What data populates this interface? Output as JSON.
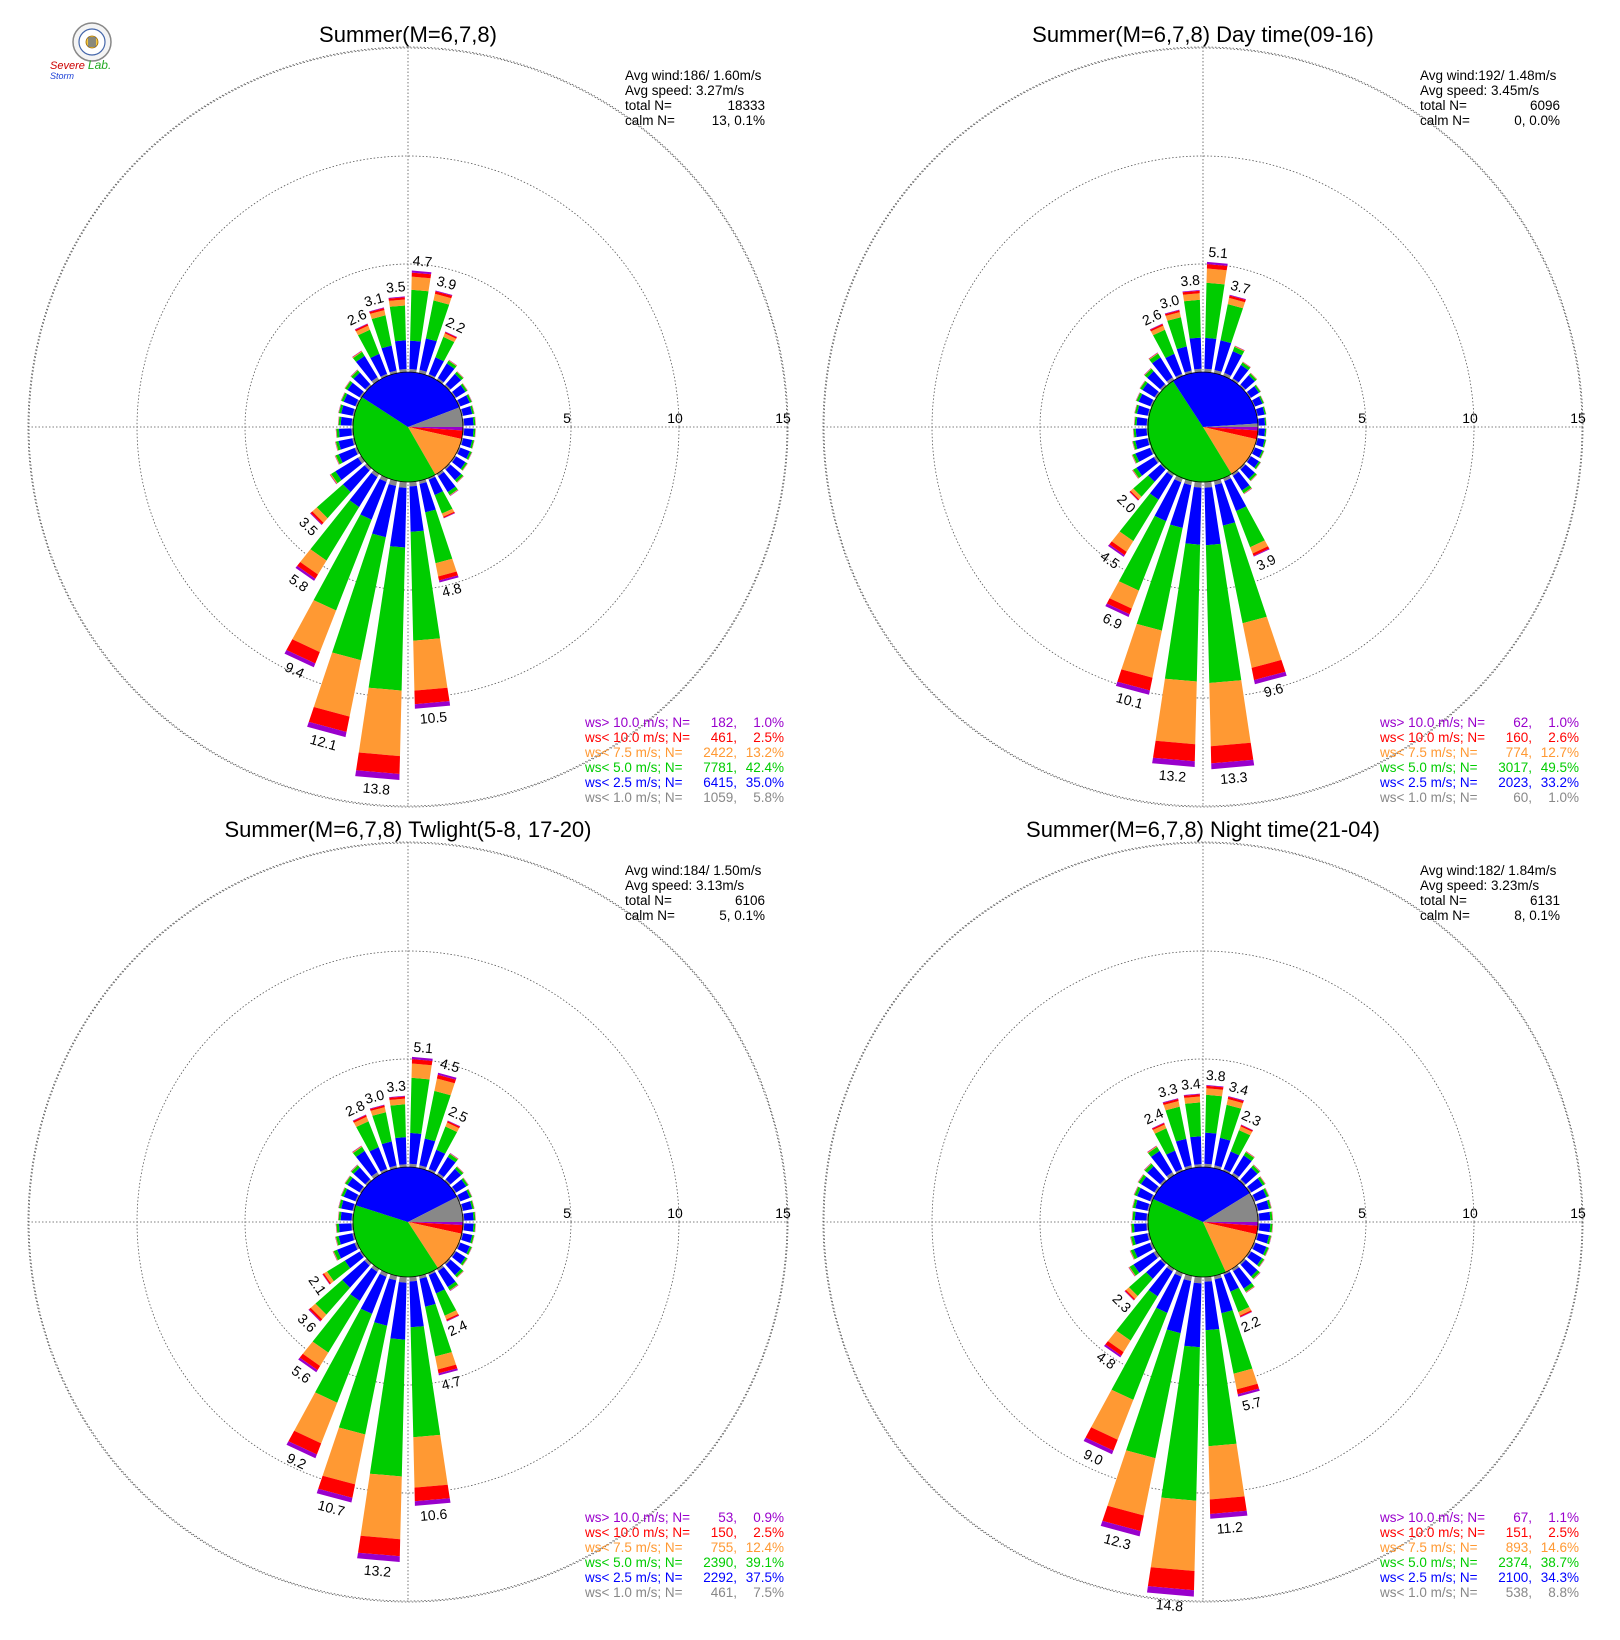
{
  "logo": {
    "text_severe": "Severe",
    "text_storm": "Storm",
    "text_lab": "Lab.",
    "colors": {
      "severe": "#cc0000",
      "storm": "#1a3fd6",
      "lab": "#22aa22",
      "seal": "#888888"
    }
  },
  "colors": {
    "gt10": "#9900cc",
    "lt10": "#ff0000",
    "lt75": "#ff9933",
    "lt5": "#00cc00",
    "lt25": "#0000ff",
    "lt1": "#888888"
  },
  "chart_data": [
    {
      "type": "wind-rose",
      "title": "Summer(M=6,7,8)",
      "radial_ticks": [
        5,
        10,
        15
      ],
      "stats": {
        "avg_wind_label": "Avg wind:186/ 1.60m/s",
        "avg_speed_label": "Avg speed: 3.27m/s",
        "total_label": "total N=",
        "total_value": "18333",
        "calm_label": "calm N=",
        "calm_value": "13,   0.1%"
      },
      "legend": [
        {
          "label": "ws> 10.0 m/s; N=",
          "n": "182,",
          "pct": "1.0%",
          "color": "#9900cc"
        },
        {
          "label": "ws< 10.0 m/s; N=",
          "n": "461,",
          "pct": "2.5%",
          "color": "#ff0000"
        },
        {
          "label": "ws<  7.5 m/s; N=",
          "n": "2422,",
          "pct": "13.2%",
          "color": "#ff9933"
        },
        {
          "label": "ws<  5.0 m/s; N=",
          "n": "7781,",
          "pct": "42.4%",
          "color": "#00cc00"
        },
        {
          "label": "ws<  2.5 m/s; N=",
          "n": "6415,",
          "pct": "35.0%",
          "color": "#0000ff"
        },
        {
          "label": "ws<  1.0 m/s; N=",
          "n": "1059,",
          "pct": "5.8%",
          "color": "#888888"
        }
      ],
      "pie": [
        1.0,
        2.5,
        13.2,
        42.4,
        35.0,
        5.8
      ],
      "petals": [
        {
          "dir": 5,
          "total": 4.7,
          "label": "4.7"
        },
        {
          "dir": 15,
          "total": 3.9,
          "label": "3.9"
        },
        {
          "dir": 25,
          "total": 2.2,
          "label": "2.2"
        },
        {
          "dir": 35,
          "total": 1.1
        },
        {
          "dir": 45,
          "total": 0.9
        },
        {
          "dir": 55,
          "total": 0.7
        },
        {
          "dir": 65,
          "total": 0.65
        },
        {
          "dir": 75,
          "total": 0.6
        },
        {
          "dir": 85,
          "total": 0.6
        },
        {
          "dir": 95,
          "total": 0.6
        },
        {
          "dir": 105,
          "total": 0.6
        },
        {
          "dir": 115,
          "total": 0.65
        },
        {
          "dir": 125,
          "total": 0.7
        },
        {
          "dir": 135,
          "total": 0.9
        },
        {
          "dir": 145,
          "total": 1.2
        },
        {
          "dir": 155,
          "total": 2.0
        },
        {
          "dir": 165,
          "total": 4.8,
          "label": "4.8"
        },
        {
          "dir": 175,
          "total": 10.5,
          "label": "10.5"
        },
        {
          "dir": 185,
          "total": 13.8,
          "label": "13.8"
        },
        {
          "dir": 195,
          "total": 12.1,
          "label": "12.1"
        },
        {
          "dir": 205,
          "total": 9.4,
          "label": "9.4"
        },
        {
          "dir": 215,
          "total": 5.8,
          "label": "5.8"
        },
        {
          "dir": 225,
          "total": 3.5,
          "label": "3.5"
        },
        {
          "dir": 235,
          "total": 1.7
        },
        {
          "dir": 245,
          "total": 1.1
        },
        {
          "dir": 255,
          "total": 0.9
        },
        {
          "dir": 265,
          "total": 0.8
        },
        {
          "dir": 275,
          "total": 0.7
        },
        {
          "dir": 285,
          "total": 0.75
        },
        {
          "dir": 295,
          "total": 0.8
        },
        {
          "dir": 305,
          "total": 0.9
        },
        {
          "dir": 315,
          "total": 1.0
        },
        {
          "dir": 325,
          "total": 1.6
        },
        {
          "dir": 335,
          "total": 2.6,
          "label": "2.6"
        },
        {
          "dir": 345,
          "total": 3.1,
          "label": "3.1"
        },
        {
          "dir": 355,
          "total": 3.5,
          "label": "3.5"
        }
      ]
    },
    {
      "type": "wind-rose",
      "title": "Summer(M=6,7,8) Day time(09-16)",
      "radial_ticks": [
        5,
        10,
        15
      ],
      "stats": {
        "avg_wind_label": "Avg wind:192/ 1.48m/s",
        "avg_speed_label": "Avg speed: 3.45m/s",
        "total_label": "total N=",
        "total_value": "6096",
        "calm_label": "calm N=",
        "calm_value": "0,   0.0%"
      },
      "legend": [
        {
          "label": "ws> 10.0 m/s; N=",
          "n": "62,",
          "pct": "1.0%",
          "color": "#9900cc"
        },
        {
          "label": "ws< 10.0 m/s; N=",
          "n": "160,",
          "pct": "2.6%",
          "color": "#ff0000"
        },
        {
          "label": "ws<  7.5 m/s; N=",
          "n": "774,",
          "pct": "12.7%",
          "color": "#ff9933"
        },
        {
          "label": "ws<  5.0 m/s; N=",
          "n": "3017,",
          "pct": "49.5%",
          "color": "#00cc00"
        },
        {
          "label": "ws<  2.5 m/s; N=",
          "n": "2023,",
          "pct": "33.2%",
          "color": "#0000ff"
        },
        {
          "label": "ws<  1.0 m/s; N=",
          "n": "60,",
          "pct": "1.0%",
          "color": "#888888"
        }
      ],
      "pie": [
        1.0,
        2.6,
        12.7,
        49.5,
        33.2,
        1.0
      ],
      "petals": [
        {
          "dir": 5,
          "total": 5.1,
          "label": "5.1"
        },
        {
          "dir": 15,
          "total": 3.7,
          "label": "3.7"
        },
        {
          "dir": 25,
          "total": 1.5
        },
        {
          "dir": 35,
          "total": 1.0
        },
        {
          "dir": 45,
          "total": 0.8
        },
        {
          "dir": 55,
          "total": 0.6
        },
        {
          "dir": 65,
          "total": 0.5
        },
        {
          "dir": 75,
          "total": 0.45
        },
        {
          "dir": 85,
          "total": 0.4
        },
        {
          "dir": 95,
          "total": 0.4
        },
        {
          "dir": 105,
          "total": 0.45
        },
        {
          "dir": 115,
          "total": 0.5
        },
        {
          "dir": 125,
          "total": 0.6
        },
        {
          "dir": 135,
          "total": 0.8
        },
        {
          "dir": 145,
          "total": 1.1
        },
        {
          "dir": 155,
          "total": 3.9,
          "label": "3.9"
        },
        {
          "dir": 165,
          "total": 9.6,
          "label": "9.6"
        },
        {
          "dir": 175,
          "total": 13.3,
          "label": "13.3"
        },
        {
          "dir": 185,
          "total": 13.2,
          "label": "13.2"
        },
        {
          "dir": 195,
          "total": 10.1,
          "label": "10.1"
        },
        {
          "dir": 205,
          "total": 6.9,
          "label": "6.9"
        },
        {
          "dir": 215,
          "total": 4.5,
          "label": "4.5"
        },
        {
          "dir": 225,
          "total": 2.0,
          "label": "2.0"
        },
        {
          "dir": 235,
          "total": 1.3
        },
        {
          "dir": 245,
          "total": 1.0
        },
        {
          "dir": 255,
          "total": 0.8
        },
        {
          "dir": 265,
          "total": 0.7
        },
        {
          "dir": 275,
          "total": 0.65
        },
        {
          "dir": 285,
          "total": 0.7
        },
        {
          "dir": 295,
          "total": 0.8
        },
        {
          "dir": 305,
          "total": 0.9
        },
        {
          "dir": 315,
          "total": 1.1
        },
        {
          "dir": 325,
          "total": 1.5
        },
        {
          "dir": 335,
          "total": 2.6,
          "label": "2.6"
        },
        {
          "dir": 345,
          "total": 3.0,
          "label": "3.0"
        },
        {
          "dir": 355,
          "total": 3.8,
          "label": "3.8"
        }
      ]
    },
    {
      "type": "wind-rose",
      "title": "Summer(M=6,7,8) Twlight(5-8, 17-20)",
      "radial_ticks": [
        5,
        10,
        15
      ],
      "stats": {
        "avg_wind_label": "Avg wind:184/ 1.50m/s",
        "avg_speed_label": "Avg speed: 3.13m/s",
        "total_label": "total N=",
        "total_value": "6106",
        "calm_label": "calm N=",
        "calm_value": "5,   0.1%"
      },
      "legend": [
        {
          "label": "ws> 10.0 m/s; N=",
          "n": "53,",
          "pct": "0.9%",
          "color": "#9900cc"
        },
        {
          "label": "ws< 10.0 m/s; N=",
          "n": "150,",
          "pct": "2.5%",
          "color": "#ff0000"
        },
        {
          "label": "ws<  7.5 m/s; N=",
          "n": "755,",
          "pct": "12.4%",
          "color": "#ff9933"
        },
        {
          "label": "ws<  5.0 m/s; N=",
          "n": "2390,",
          "pct": "39.1%",
          "color": "#00cc00"
        },
        {
          "label": "ws<  2.5 m/s; N=",
          "n": "2292,",
          "pct": "37.5%",
          "color": "#0000ff"
        },
        {
          "label": "ws<  1.0 m/s; N=",
          "n": "461,",
          "pct": "7.5%",
          "color": "#888888"
        }
      ],
      "pie": [
        0.9,
        2.5,
        12.4,
        39.1,
        37.5,
        7.5
      ],
      "petals": [
        {
          "dir": 5,
          "total": 5.1,
          "label": "5.1"
        },
        {
          "dir": 15,
          "total": 4.5,
          "label": "4.5"
        },
        {
          "dir": 25,
          "total": 2.5,
          "label": "2.5"
        },
        {
          "dir": 35,
          "total": 1.2
        },
        {
          "dir": 45,
          "total": 0.9
        },
        {
          "dir": 55,
          "total": 0.75
        },
        {
          "dir": 65,
          "total": 0.65
        },
        {
          "dir": 75,
          "total": 0.6
        },
        {
          "dir": 85,
          "total": 0.6
        },
        {
          "dir": 95,
          "total": 0.6
        },
        {
          "dir": 105,
          "total": 0.6
        },
        {
          "dir": 115,
          "total": 0.65
        },
        {
          "dir": 125,
          "total": 0.7
        },
        {
          "dir": 135,
          "total": 0.9
        },
        {
          "dir": 145,
          "total": 1.2
        },
        {
          "dir": 155,
          "total": 2.4,
          "label": "2.4"
        },
        {
          "dir": 165,
          "total": 4.7,
          "label": "4.7"
        },
        {
          "dir": 175,
          "total": 10.6,
          "label": "10.6"
        },
        {
          "dir": 185,
          "total": 13.2,
          "label": "13.2"
        },
        {
          "dir": 195,
          "total": 10.7,
          "label": "10.7"
        },
        {
          "dir": 205,
          "total": 9.2,
          "label": "9.2"
        },
        {
          "dir": 215,
          "total": 5.6,
          "label": "5.6"
        },
        {
          "dir": 225,
          "total": 3.6,
          "label": "3.6"
        },
        {
          "dir": 235,
          "total": 2.1,
          "label": "2.1"
        },
        {
          "dir": 245,
          "total": 1.2
        },
        {
          "dir": 255,
          "total": 0.9
        },
        {
          "dir": 265,
          "total": 0.8
        },
        {
          "dir": 275,
          "total": 0.7
        },
        {
          "dir": 285,
          "total": 0.75
        },
        {
          "dir": 295,
          "total": 0.8
        },
        {
          "dir": 305,
          "total": 0.9
        },
        {
          "dir": 315,
          "total": 1.0
        },
        {
          "dir": 325,
          "total": 1.6
        },
        {
          "dir": 335,
          "total": 2.8,
          "label": "2.8"
        },
        {
          "dir": 345,
          "total": 3.0,
          "label": "3.0"
        },
        {
          "dir": 355,
          "total": 3.3,
          "label": "3.3"
        }
      ]
    },
    {
      "type": "wind-rose",
      "title": "Summer(M=6,7,8) Night time(21-04)",
      "radial_ticks": [
        5,
        10,
        15
      ],
      "stats": {
        "avg_wind_label": "Avg wind:182/ 1.84m/s",
        "avg_speed_label": "Avg speed: 3.23m/s",
        "total_label": "total N=",
        "total_value": "6131",
        "calm_label": "calm N=",
        "calm_value": "8,   0.1%"
      },
      "legend": [
        {
          "label": "ws> 10.0 m/s; N=",
          "n": "67,",
          "pct": "1.1%",
          "color": "#9900cc"
        },
        {
          "label": "ws< 10.0 m/s; N=",
          "n": "151,",
          "pct": "2.5%",
          "color": "#ff0000"
        },
        {
          "label": "ws<  7.5 m/s; N=",
          "n": "893,",
          "pct": "14.6%",
          "color": "#ff9933"
        },
        {
          "label": "ws<  5.0 m/s; N=",
          "n": "2374,",
          "pct": "38.7%",
          "color": "#00cc00"
        },
        {
          "label": "ws<  2.5 m/s; N=",
          "n": "2100,",
          "pct": "34.3%",
          "color": "#0000ff"
        },
        {
          "label": "ws<  1.0 m/s; N=",
          "n": "538,",
          "pct": "8.8%",
          "color": "#888888"
        }
      ],
      "pie": [
        1.1,
        2.5,
        14.6,
        38.7,
        34.3,
        8.8
      ],
      "petals": [
        {
          "dir": 5,
          "total": 3.8,
          "label": "3.8"
        },
        {
          "dir": 15,
          "total": 3.4,
          "label": "3.4"
        },
        {
          "dir": 25,
          "total": 2.3,
          "label": "2.3"
        },
        {
          "dir": 35,
          "total": 1.3
        },
        {
          "dir": 45,
          "total": 1.0
        },
        {
          "dir": 55,
          "total": 0.85
        },
        {
          "dir": 65,
          "total": 0.75
        },
        {
          "dir": 75,
          "total": 0.7
        },
        {
          "dir": 85,
          "total": 0.7
        },
        {
          "dir": 95,
          "total": 0.7
        },
        {
          "dir": 105,
          "total": 0.7
        },
        {
          "dir": 115,
          "total": 0.75
        },
        {
          "dir": 125,
          "total": 0.8
        },
        {
          "dir": 135,
          "total": 1.0
        },
        {
          "dir": 145,
          "total": 1.3
        },
        {
          "dir": 155,
          "total": 2.2,
          "label": "2.2"
        },
        {
          "dir": 165,
          "total": 5.7,
          "label": "5.7"
        },
        {
          "dir": 175,
          "total": 11.2,
          "label": "11.2"
        },
        {
          "dir": 185,
          "total": 14.8,
          "label": "14.8"
        },
        {
          "dir": 195,
          "total": 12.3,
          "label": "12.3"
        },
        {
          "dir": 205,
          "total": 9.0,
          "label": "9.0"
        },
        {
          "dir": 215,
          "total": 4.8,
          "label": "4.8"
        },
        {
          "dir": 225,
          "total": 2.3,
          "label": "2.3"
        },
        {
          "dir": 235,
          "total": 1.5
        },
        {
          "dir": 245,
          "total": 1.1
        },
        {
          "dir": 255,
          "total": 0.9
        },
        {
          "dir": 265,
          "total": 0.8
        },
        {
          "dir": 275,
          "total": 0.75
        },
        {
          "dir": 285,
          "total": 0.8
        },
        {
          "dir": 295,
          "total": 0.9
        },
        {
          "dir": 305,
          "total": 1.0
        },
        {
          "dir": 315,
          "total": 1.1
        },
        {
          "dir": 325,
          "total": 1.6
        },
        {
          "dir": 335,
          "total": 2.4,
          "label": "2.4"
        },
        {
          "dir": 345,
          "total": 3.3,
          "label": "3.3"
        },
        {
          "dir": 355,
          "total": 3.4,
          "label": "3.4"
        }
      ]
    }
  ]
}
